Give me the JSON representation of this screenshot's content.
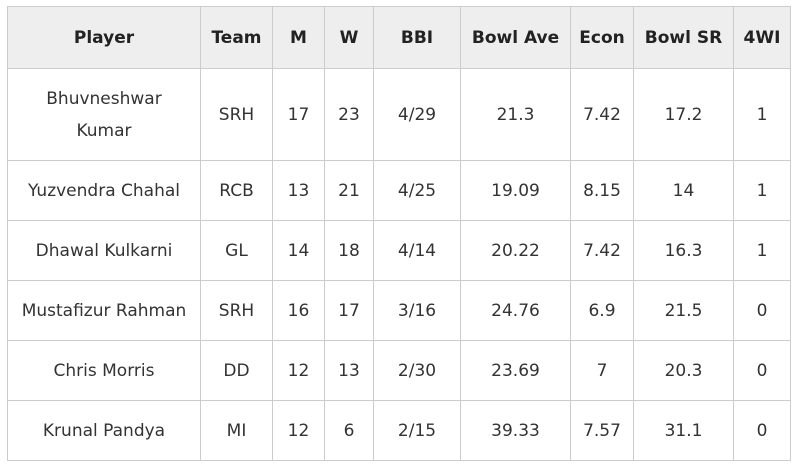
{
  "table": {
    "header": [
      "Player",
      "Team",
      "M",
      "W",
      "BBI",
      "Bowl Ave",
      "Econ",
      "Bowl SR",
      "4WI"
    ],
    "rows": [
      [
        "Bhuvneshwar Kumar",
        "SRH",
        "17",
        "23",
        "4/29",
        "21.3",
        "7.42",
        "17.2",
        "1"
      ],
      [
        "Yuzvendra Chahal",
        "RCB",
        "13",
        "21",
        "4/25",
        "19.09",
        "8.15",
        "14",
        "1"
      ],
      [
        "Dhawal Kulkarni",
        "GL",
        "14",
        "18",
        "4/14",
        "20.22",
        "7.42",
        "16.3",
        "1"
      ],
      [
        "Mustafizur Rahman",
        "SRH",
        "16",
        "17",
        "3/16",
        "24.76",
        "6.9",
        "21.5",
        "0"
      ],
      [
        "Chris Morris",
        "DD",
        "12",
        "13",
        "2/30",
        "23.69",
        "7",
        "20.3",
        "0"
      ],
      [
        "Krunal Pandya",
        "MI",
        "12",
        "6",
        "2/15",
        "39.33",
        "7.57",
        "31.1",
        "0"
      ]
    ]
  }
}
